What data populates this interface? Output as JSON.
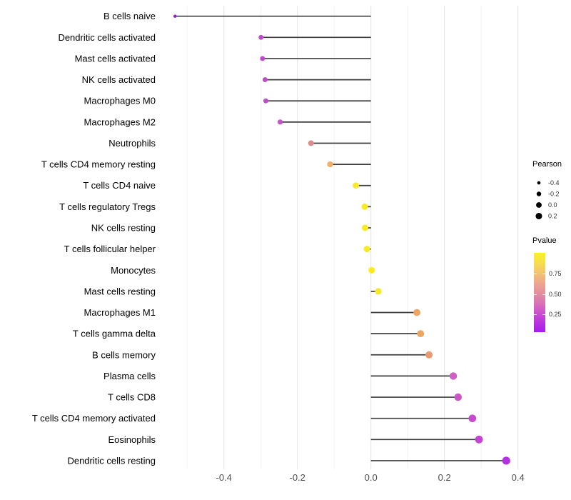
{
  "chart_data": {
    "type": "scatter",
    "variant": "horizontal-lollipop",
    "title": "",
    "xlabel": "",
    "ylabel": "",
    "baseline_x": 0,
    "xlim": [
      -0.578,
      0.413
    ],
    "x_ticks": [
      -0.4,
      -0.2,
      0.0,
      0.2,
      0.4
    ],
    "x_tick_labels": [
      "-0.4",
      "-0.2",
      "0.0",
      "0.2",
      "0.4"
    ],
    "grid": {
      "major": [
        -0.4,
        -0.2,
        0.0,
        0.2,
        0.4
      ],
      "minor": [
        -0.5,
        -0.3,
        -0.1,
        0.1,
        0.3
      ],
      "major_color": "#e2e2e2",
      "minor_color": "#f2f2f2"
    },
    "stem_color": "#3d3d3d",
    "rows": [
      {
        "label": "B cells naive",
        "pearson": -0.533,
        "dot_color": "#9717df"
      },
      {
        "label": "Dendritic cells activated",
        "pearson": -0.299,
        "dot_color": "#be4ac9"
      },
      {
        "label": "Mast cells activated",
        "pearson": -0.295,
        "dot_color": "#be4ac9"
      },
      {
        "label": "NK cells activated",
        "pearson": -0.288,
        "dot_color": "#bf4cc8"
      },
      {
        "label": "Macrophages M0",
        "pearson": -0.286,
        "dot_color": "#bf4cc8"
      },
      {
        "label": "Macrophages M2",
        "pearson": -0.247,
        "dot_color": "#c456c5"
      },
      {
        "label": "Neutrophils",
        "pearson": -0.163,
        "dot_color": "#dd8a8b"
      },
      {
        "label": "T cells CD4 memory resting",
        "pearson": -0.111,
        "dot_color": "#efb067"
      },
      {
        "label": "T cells CD4 naive",
        "pearson": -0.041,
        "dot_color": "#f8e72b"
      },
      {
        "label": "T cells regulatory  Tregs",
        "pearson": -0.017,
        "dot_color": "#f9ea23"
      },
      {
        "label": "NK cells resting",
        "pearson": -0.016,
        "dot_color": "#f9ea23"
      },
      {
        "label": "T cells follicular helper",
        "pearson": -0.011,
        "dot_color": "#f9ea23"
      },
      {
        "label": "Monocytes",
        "pearson": 0.002,
        "dot_color": "#fcec1b"
      },
      {
        "label": "Mast cells resting",
        "pearson": 0.02,
        "dot_color": "#f8e72b"
      },
      {
        "label": "Macrophages M1",
        "pearson": 0.125,
        "dot_color": "#eda55f"
      },
      {
        "label": "T cells gamma delta",
        "pearson": 0.135,
        "dot_color": "#eca462"
      },
      {
        "label": "B cells memory",
        "pearson": 0.158,
        "dot_color": "#ea9a72"
      },
      {
        "label": "Plasma cells",
        "pearson": 0.224,
        "dot_color": "#ce61bf"
      },
      {
        "label": "T cells CD8",
        "pearson": 0.237,
        "dot_color": "#cb56c6"
      },
      {
        "label": "T cells CD4 memory activated",
        "pearson": 0.276,
        "dot_color": "#c74bcf"
      },
      {
        "label": "Eosinophils",
        "pearson": 0.294,
        "dot_color": "#c243d4"
      },
      {
        "label": "Dendritic cells resting",
        "pearson": 0.368,
        "dot_color": "#b232dd"
      }
    ],
    "legend_size": {
      "title": "Pearson",
      "dot_color": "#000000",
      "entries": [
        {
          "label": "-0.4",
          "value": -0.4
        },
        {
          "label": "-0.2",
          "value": -0.2
        },
        {
          "label": "0.0",
          "value": 0.0
        },
        {
          "label": "0.2",
          "value": 0.2
        }
      ]
    },
    "legend_color": {
      "title": "Pvalue",
      "tick_labels": [
        "0.75",
        "0.50",
        "0.25"
      ],
      "gradient_top_to_bottom": [
        "#faf31f",
        "#f7de4c",
        "#f3c472",
        "#eda78c",
        "#e5909f",
        "#da74b4",
        "#cc52cc",
        "#bb34df",
        "#a81bee"
      ]
    }
  }
}
